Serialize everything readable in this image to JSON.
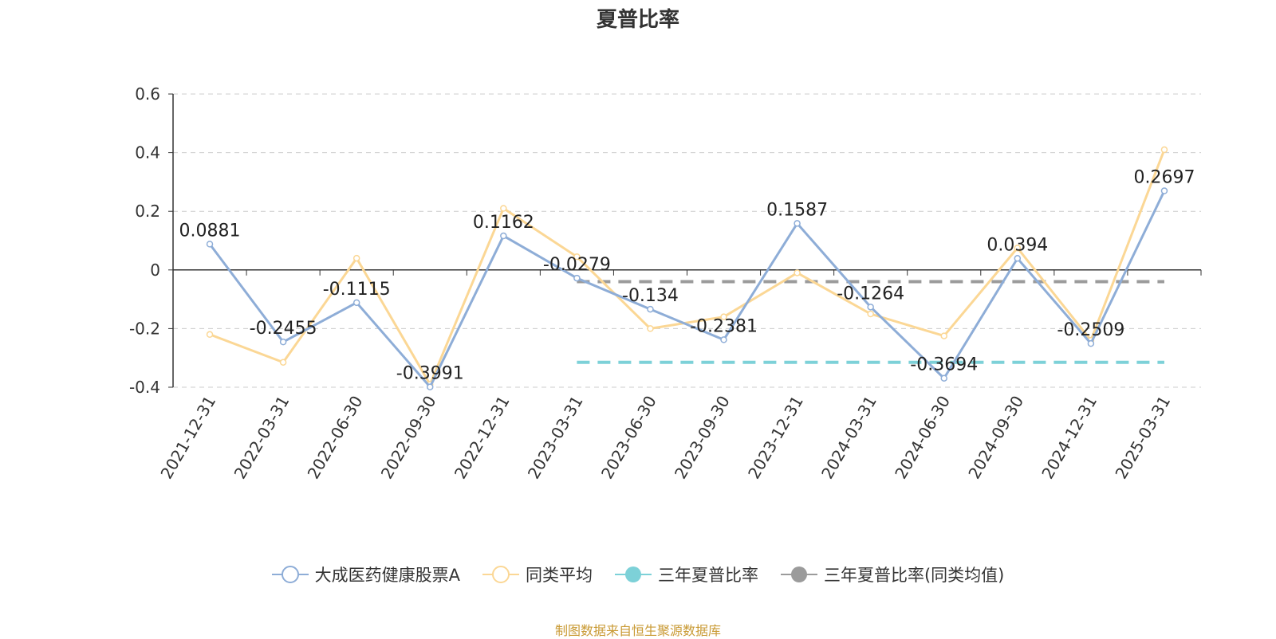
{
  "chart_data": {
    "type": "line",
    "title": "夏普比率",
    "categories": [
      "2021-12-31",
      "2022-03-31",
      "2022-06-30",
      "2022-09-30",
      "2022-12-31",
      "2023-03-31",
      "2023-06-30",
      "2023-09-30",
      "2023-12-31",
      "2024-03-31",
      "2024-06-30",
      "2024-09-30",
      "2024-12-31",
      "2025-03-31"
    ],
    "ylim": [
      -0.4,
      0.6
    ],
    "yticks": [
      "0.6",
      "0.4",
      "0.2",
      "0",
      "-0.2",
      "-0.4"
    ],
    "ytick_values": [
      0.6,
      0.4,
      0.2,
      0,
      -0.2,
      -0.4
    ],
    "grid": true,
    "legend_position": "bottom",
    "series": [
      {
        "name": "大成医药健康股票A",
        "color": "#8eadd7",
        "values": [
          0.0881,
          -0.2455,
          -0.1115,
          -0.3991,
          0.1162,
          -0.0279,
          -0.134,
          -0.2381,
          0.1587,
          -0.1264,
          -0.3694,
          0.0394,
          -0.2509,
          0.2697
        ],
        "labels": [
          "0.0881",
          "-0.2455",
          "-0.1115",
          "-0.3991",
          "0.1162",
          "-0.0279",
          "-0.134",
          "-0.2381",
          "0.1587",
          "-0.1264",
          "-0.3694",
          "0.0394",
          "-0.2509",
          "0.2697"
        ]
      },
      {
        "name": "同类平均",
        "color": "#fbd795",
        "values": [
          -0.22,
          -0.315,
          0.04,
          -0.39,
          0.21,
          0.045,
          -0.2,
          -0.16,
          -0.01,
          -0.15,
          -0.225,
          0.075,
          -0.24,
          0.41
        ]
      },
      {
        "name": "三年夏普比率",
        "color": "#7dd1d8",
        "type": "reference",
        "value": -0.315,
        "from": "2023-03-31",
        "to": "2025-03-31"
      },
      {
        "name": "三年夏普比率(同类均值)",
        "color": "#9b9b9b",
        "type": "reference",
        "value": -0.04,
        "from": "2023-03-31",
        "to": "2025-03-31"
      }
    ]
  },
  "source_note": "制图数据来自恒生聚源数据库"
}
